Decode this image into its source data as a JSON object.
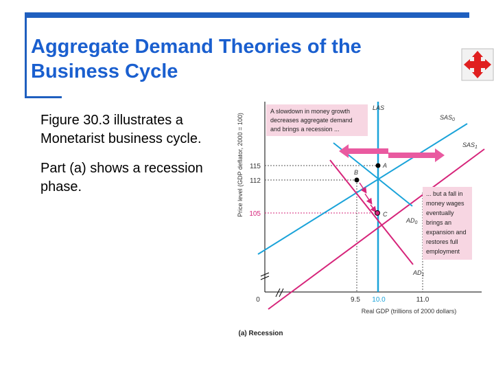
{
  "slide": {
    "title_line1": "Aggregate Demand Theories of the",
    "title_line2": "Business Cycle",
    "para1_line1": "Figure 30.3 illustrates a",
    "para1_line2": "Monetarist business cycle.",
    "para2_line1": "Part (a) shows a recession",
    "para2_line2": "phase.",
    "nav_icon": "four-way-move-icon"
  },
  "diagram": {
    "y_axis_label": "Price level (GDP deflator, 2000 = 100)",
    "x_axis_label": "Real GDP (trillions of 2000 dollars)",
    "caption": "(a) Recession",
    "y_ticks": [
      "115",
      "112",
      "105"
    ],
    "x_ticks": [
      "0",
      "9.5",
      "10.0",
      "11.0"
    ],
    "curves": {
      "las": "LAS",
      "sas0": "SAS",
      "sas0_sub": "0",
      "sas1": "SAS",
      "sas1_sub": "1",
      "ad0": "AD",
      "ad0_sub": "0",
      "ad1": "AD",
      "ad1_sub": "1"
    },
    "points": {
      "a": "A",
      "b": "B",
      "c": "C"
    },
    "annotation_left": [
      "A slowdown in money growth",
      "decreases aggregate demand",
      "and brings a recession ..."
    ],
    "annotation_right": [
      "... but a fall in",
      "money wages",
      "eventually",
      "brings an",
      "expansion and",
      "restores full",
      "employment"
    ],
    "colors": {
      "blue": "#1aa3d9",
      "magenta": "#d6247a",
      "annotation_bg": "#f7d6e2",
      "point": "#000000"
    }
  }
}
